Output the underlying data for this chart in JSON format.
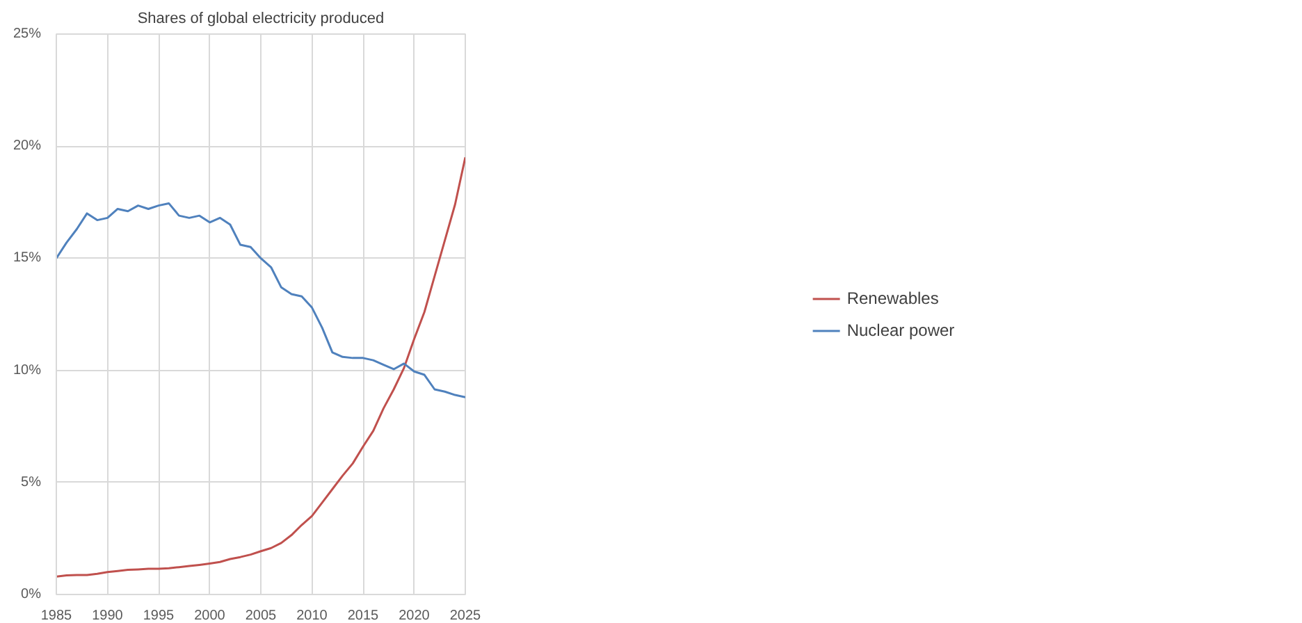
{
  "chart_data": {
    "type": "line",
    "title": "Shares of global electricity produced",
    "x": [
      1985,
      1986,
      1987,
      1988,
      1989,
      1990,
      1991,
      1992,
      1993,
      1994,
      1995,
      1996,
      1997,
      1998,
      1999,
      2000,
      2001,
      2002,
      2003,
      2004,
      2005,
      2006,
      2007,
      2008,
      2009,
      2010,
      2011,
      2012,
      2013,
      2014,
      2015,
      2016,
      2017,
      2018,
      2019,
      2020,
      2021,
      2022,
      2023,
      2024,
      2025
    ],
    "series": [
      {
        "name": "Renewables",
        "color": "#c0504d",
        "values": [
          0.8,
          0.85,
          0.87,
          0.87,
          0.92,
          1.0,
          1.05,
          1.1,
          1.12,
          1.15,
          1.15,
          1.17,
          1.22,
          1.27,
          1.32,
          1.38,
          1.45,
          1.58,
          1.67,
          1.78,
          1.93,
          2.07,
          2.3,
          2.65,
          3.1,
          3.5,
          4.1,
          4.7,
          5.3,
          5.85,
          6.6,
          7.3,
          8.3,
          9.15,
          10.1,
          11.4,
          12.6,
          14.2,
          15.8,
          17.4,
          19.5
        ]
      },
      {
        "name": "Nuclear power",
        "color": "#4f81bd",
        "values": [
          15.0,
          15.7,
          16.3,
          17.0,
          16.7,
          16.8,
          17.2,
          17.1,
          17.35,
          17.2,
          17.35,
          17.45,
          16.9,
          16.8,
          16.9,
          16.6,
          16.8,
          16.5,
          15.6,
          15.5,
          15.0,
          14.6,
          13.7,
          13.4,
          13.3,
          12.8,
          11.9,
          10.8,
          10.6,
          10.55,
          10.55,
          10.45,
          10.25,
          10.05,
          10.3,
          9.95,
          9.8,
          9.15,
          9.05,
          8.9,
          8.8
        ]
      }
    ],
    "xlim": [
      1985,
      2025
    ],
    "xticks": [
      1985,
      1990,
      1995,
      2000,
      2005,
      2010,
      2015,
      2020,
      2025
    ],
    "ylim": [
      0,
      25
    ],
    "yticks": [
      {
        "value": 0,
        "label": "0%"
      },
      {
        "value": 5,
        "label": "5%"
      },
      {
        "value": 10,
        "label": "10%"
      },
      {
        "value": 15,
        "label": "15%"
      },
      {
        "value": 20,
        "label": "20%"
      },
      {
        "value": 25,
        "label": "25%"
      }
    ],
    "grid": true,
    "legend": "right",
    "marker": "none",
    "line_style": "solid"
  }
}
